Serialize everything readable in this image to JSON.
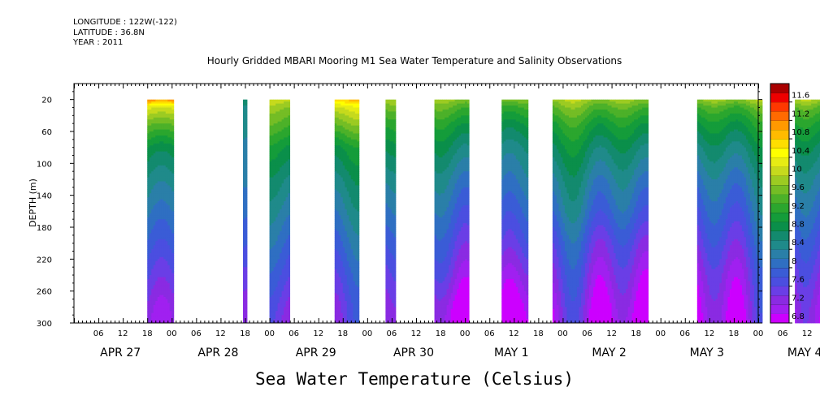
{
  "header": {
    "longitude": "LONGITUDE : 122W(-122)",
    "latitude": "LATITUDE : 36.8N",
    "year": "YEAR : 2011"
  },
  "chart_data": {
    "type": "heatmap",
    "title": "Hourly Gridded MBARI Mooring M1 Sea Water Temperature and Salinity Observations",
    "bottom_title": "Sea Water Temperature (Celsius)",
    "ylabel": "DEPTH (m)",
    "ylim": [
      300,
      0
    ],
    "y_ticks": [
      20,
      60,
      100,
      140,
      180,
      220,
      260,
      300
    ],
    "x_hour_labels": [
      "06",
      "12",
      "18",
      "00",
      "06",
      "12",
      "18",
      "00",
      "06",
      "12",
      "18",
      "00",
      "06",
      "12",
      "18",
      "00",
      "06",
      "12",
      "18",
      "00",
      "06",
      "12",
      "18",
      "00",
      "06",
      "12",
      "18",
      "00",
      "06",
      "12",
      "18",
      "00"
    ],
    "x_day_labels": [
      "APR 27",
      "APR 28",
      "APR 29",
      "APR 30",
      "MAY  1",
      "MAY  2",
      "MAY  3",
      "MAY  4"
    ],
    "xlim_hours": [
      0,
      168
    ],
    "colorbar": {
      "levels": [
        6.8,
        7.0,
        7.2,
        7.4,
        7.6,
        7.8,
        8.0,
        8.2,
        8.4,
        8.6,
        8.8,
        9.0,
        9.2,
        9.4,
        9.6,
        9.8,
        10.0,
        10.2,
        10.4,
        10.6,
        10.8,
        11.0,
        11.2,
        11.4,
        11.6,
        11.8
      ],
      "labels": [
        "11.6",
        "11.2",
        "10.8",
        "10.4",
        "10",
        "9.6",
        "9.2",
        "8.8",
        "8.4",
        "8",
        "7.6",
        "7.2",
        "6.8"
      ],
      "colors": [
        "#cc00ff",
        "#a020f0",
        "#8a2be2",
        "#6a3ee6",
        "#4b4ee0",
        "#3a5cd6",
        "#2f6fc2",
        "#2a7fa8",
        "#1f8a8a",
        "#138a6e",
        "#0a8f4a",
        "#149c3a",
        "#2ba62e",
        "#4cb129",
        "#74bd25",
        "#9ccb22",
        "#c6da1d",
        "#e6ec14",
        "#ffff00",
        "#ffde00",
        "#ffbb00",
        "#ff9900",
        "#ff6a00",
        "#ff3800",
        "#ee0000",
        "#aa0000"
      ]
    },
    "note": "Observation blocks given as [start hour, end hour] from APR 27 00Z; temperature profile (deg C) at each depth_nodes value; amp is the time-wise wobble amplitude.",
    "depth_nodes": [
      20,
      30,
      50,
      80,
      120,
      160,
      200,
      240,
      280,
      300
    ],
    "blocks": [
      {
        "start": 18,
        "end": 24.5,
        "profile": [
          11.2,
          10.3,
          9.7,
          9.0,
          8.6,
          8.3,
          8.0,
          7.7,
          7.4,
          7.35
        ],
        "amp": 0.15
      },
      {
        "start": 41.5,
        "end": 42.5,
        "profile": [
          8.7,
          8.6,
          8.5,
          8.4,
          8.3,
          8.1,
          7.9,
          7.6,
          7.35,
          7.3
        ],
        "amp": 0.05
      },
      {
        "start": 48,
        "end": 53,
        "profile": [
          10.1,
          9.8,
          9.5,
          9.0,
          8.6,
          8.3,
          8.0,
          7.7,
          7.4,
          7.3
        ],
        "amp": 0.15
      },
      {
        "start": 64,
        "end": 70,
        "profile": [
          10.8,
          10.2,
          9.7,
          9.0,
          8.6,
          8.3,
          8.0,
          7.7,
          7.45,
          7.4
        ],
        "amp": 0.2
      },
      {
        "start": 76.5,
        "end": 79,
        "profile": [
          10.0,
          9.7,
          9.3,
          8.9,
          8.5,
          8.2,
          7.9,
          7.6,
          7.35,
          7.3
        ],
        "amp": 0.1
      },
      {
        "start": 88.5,
        "end": 97,
        "profile": [
          9.9,
          9.6,
          9.2,
          8.8,
          8.4,
          8.1,
          7.8,
          7.5,
          7.1,
          7.0
        ],
        "amp": 0.25
      },
      {
        "start": 105,
        "end": 111.5,
        "profile": [
          9.8,
          9.4,
          9.0,
          8.6,
          8.3,
          8.0,
          7.7,
          7.3,
          6.95,
          6.85
        ],
        "amp": 0.25
      },
      {
        "start": 117.5,
        "end": 141,
        "profile": [
          9.9,
          9.6,
          9.2,
          8.8,
          8.4,
          8.1,
          7.7,
          7.4,
          7.15,
          7.05
        ],
        "amp": 0.3
      },
      {
        "start": 153,
        "end": 169,
        "profile": [
          9.9,
          9.5,
          9.1,
          8.7,
          8.3,
          8.0,
          7.7,
          7.4,
          7.2,
          7.15
        ],
        "amp": 0.3
      },
      {
        "start": 177,
        "end": 189.5,
        "profile": [
          10.0,
          9.6,
          9.2,
          8.8,
          8.4,
          8.1,
          7.8,
          7.5,
          7.25,
          7.2
        ],
        "amp": 0.3
      }
    ]
  }
}
